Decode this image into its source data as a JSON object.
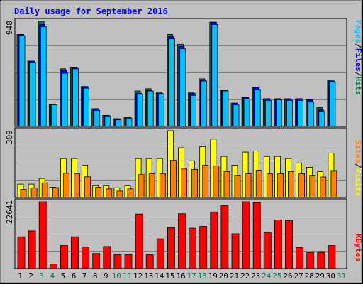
{
  "title": "Daily usage for September 2016",
  "colors": {
    "frame_bg": "#c0c0c0",
    "plot_bg": "#c0c0c0",
    "title": "#0000ff",
    "hits": "#00805c",
    "files": "#0000ff",
    "pages": "#00c0ff",
    "visits": "#ffff00",
    "sites": "#ff8000",
    "kbytes": "#ff0000",
    "weekend_label": "#00805c",
    "weekday_label": "#000000"
  },
  "panels": {
    "top": {
      "max_label": "948",
      "legend": [
        {
          "text": "Pages",
          "color": "#00c0ff"
        },
        {
          "text": "/",
          "color": "#000000"
        },
        {
          "text": "Files",
          "color": "#0000ff"
        },
        {
          "text": "/",
          "color": "#000000"
        },
        {
          "text": "Hits",
          "color": "#00805c"
        }
      ]
    },
    "middle": {
      "max_label": "309",
      "legend": [
        {
          "text": "Sites",
          "color": "#ff8000"
        },
        {
          "text": "/",
          "color": "#000000"
        },
        {
          "text": "Visits",
          "color": "#ffff00"
        }
      ]
    },
    "bottom": {
      "max_label": "22641",
      "legend": [
        {
          "text": "KBytes",
          "color": "#ff0000"
        }
      ]
    }
  },
  "chart_data": [
    {
      "type": "bar",
      "title": "Daily usage for September 2016",
      "categories": [
        "1",
        "2",
        "3",
        "4",
        "5",
        "6",
        "7",
        "8",
        "9",
        "10",
        "11",
        "12",
        "13",
        "14",
        "15",
        "16",
        "17",
        "18",
        "19",
        "20",
        "21",
        "22",
        "23",
        "24",
        "25",
        "26",
        "27",
        "28",
        "29",
        "30",
        "31"
      ],
      "weekend_days": [
        "3",
        "4",
        "10",
        "11",
        "17",
        "18",
        "24",
        "25",
        "31"
      ],
      "ylim": [
        0,
        948
      ],
      "series": [
        {
          "name": "Hits",
          "values": [
            830,
            590,
            948,
            200,
            520,
            530,
            360,
            160,
            100,
            70,
            85,
            320,
            340,
            310,
            830,
            740,
            310,
            430,
            940,
            330,
            210,
            260,
            350,
            250,
            250,
            250,
            250,
            240,
            170,
            420,
            0
          ]
        },
        {
          "name": "Files",
          "values": [
            830,
            590,
            920,
            200,
            510,
            530,
            360,
            160,
            100,
            70,
            85,
            300,
            330,
            300,
            810,
            720,
            300,
            420,
            940,
            330,
            210,
            260,
            350,
            250,
            250,
            250,
            250,
            240,
            150,
            410,
            0
          ]
        },
        {
          "name": "Pages",
          "values": [
            820,
            580,
            900,
            195,
            480,
            520,
            345,
            145,
            95,
            60,
            75,
            290,
            320,
            290,
            790,
            700,
            280,
            410,
            920,
            320,
            195,
            250,
            335,
            235,
            240,
            235,
            235,
            220,
            135,
            400,
            0
          ]
        }
      ]
    },
    {
      "type": "bar",
      "categories": [
        "1",
        "2",
        "3",
        "4",
        "5",
        "6",
        "7",
        "8",
        "9",
        "10",
        "11",
        "12",
        "13",
        "14",
        "15",
        "16",
        "17",
        "18",
        "19",
        "20",
        "21",
        "22",
        "23",
        "24",
        "25",
        "26",
        "27",
        "28",
        "29",
        "30",
        "31"
      ],
      "ylim": [
        0,
        309
      ],
      "series": [
        {
          "name": "Visits",
          "values": [
            62,
            62,
            88,
            48,
            180,
            180,
            150,
            55,
            55,
            45,
            55,
            180,
            180,
            180,
            309,
            230,
            170,
            235,
            270,
            190,
            150,
            210,
            215,
            190,
            190,
            180,
            160,
            140,
            120,
            205,
            0
          ]
        },
        {
          "name": "Sites",
          "values": [
            38,
            44,
            68,
            46,
            112,
            110,
            96,
            48,
            40,
            30,
            40,
            106,
            110,
            110,
            172,
            132,
            130,
            150,
            146,
            120,
            100,
            110,
            123,
            110,
            110,
            120,
            110,
            100,
            95,
            122,
            0
          ]
        }
      ]
    },
    {
      "type": "bar",
      "categories": [
        "1",
        "2",
        "3",
        "4",
        "5",
        "6",
        "7",
        "8",
        "9",
        "10",
        "11",
        "12",
        "13",
        "14",
        "15",
        "16",
        "17",
        "18",
        "19",
        "20",
        "21",
        "22",
        "23",
        "24",
        "25",
        "26",
        "27",
        "28",
        "29",
        "30",
        "31"
      ],
      "ylim": [
        0,
        22641
      ],
      "series": [
        {
          "name": "KBytes",
          "values": [
            10800,
            12800,
            22641,
            1600,
            7800,
            10800,
            7300,
            5100,
            7500,
            4700,
            4700,
            18500,
            4700,
            10100,
            13900,
            18600,
            13700,
            14300,
            19200,
            21300,
            11800,
            22641,
            22300,
            12300,
            16500,
            16300,
            7200,
            5400,
            5500,
            7800,
            0
          ]
        }
      ]
    }
  ]
}
